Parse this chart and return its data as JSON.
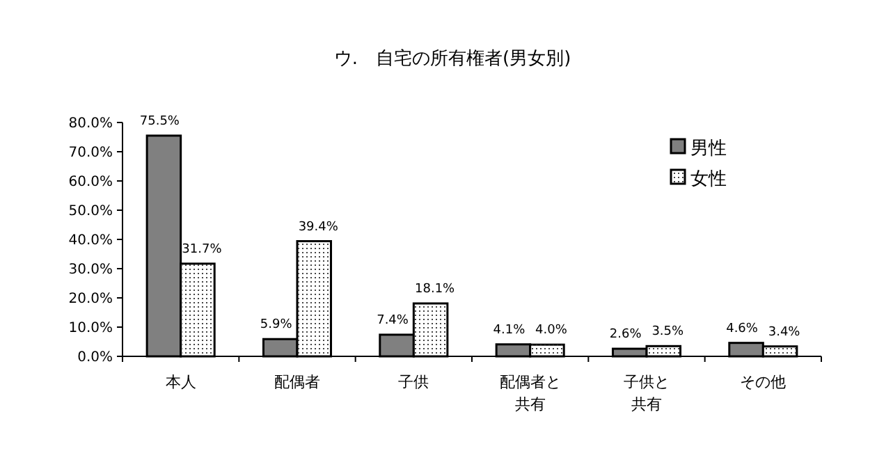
{
  "chart_data": {
    "type": "bar",
    "title": "ウ.　自宅の所有権者(男女別)",
    "categories": [
      "本人",
      "配偶者",
      "子供",
      "配偶者と共有",
      "子供と共有",
      "その他"
    ],
    "series": [
      {
        "name": "男性",
        "color": "#808080",
        "values": [
          75.5,
          5.9,
          7.4,
          4.1,
          2.6,
          4.6
        ],
        "value_labels": [
          "75.5%",
          "5.9%",
          "7.4%",
          "4.1%",
          "2.6%",
          "4.6%"
        ]
      },
      {
        "name": "女性",
        "color": "#ffffff",
        "values": [
          31.7,
          39.4,
          18.1,
          4.0,
          3.5,
          3.4
        ],
        "value_labels": [
          "31.7%",
          "39.4%",
          "18.1%",
          "4.0%",
          "3.5%",
          "3.4%"
        ]
      }
    ],
    "ylim": [
      0,
      80
    ],
    "yticks": [
      {
        "value": 0,
        "label": "0.0%"
      },
      {
        "value": 10,
        "label": "10.0%"
      },
      {
        "value": 20,
        "label": "20.0%"
      },
      {
        "value": 30,
        "label": "30.0%"
      },
      {
        "value": 40,
        "label": "40.0%"
      },
      {
        "value": 50,
        "label": "50.0%"
      },
      {
        "value": 60,
        "label": "60.0%"
      },
      {
        "value": 70,
        "label": "70.0%"
      },
      {
        "value": 80,
        "label": "80.0%"
      }
    ],
    "grid": false,
    "legend": "top right"
  }
}
